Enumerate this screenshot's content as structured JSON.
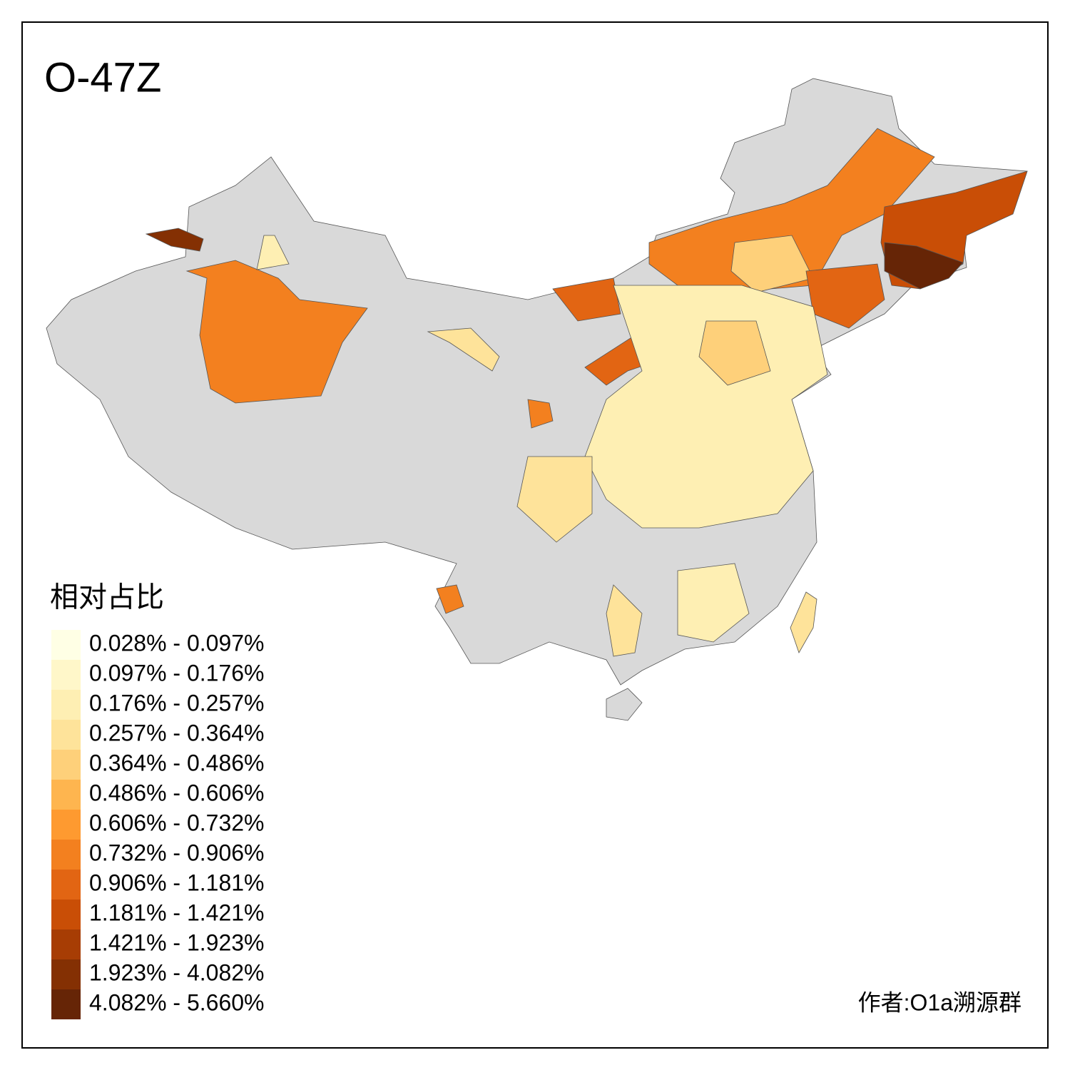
{
  "title": "O-47Z",
  "legend": {
    "title": "相对占比",
    "items": [
      {
        "label": "0.028% - 0.097%",
        "color": "#FFFFE5"
      },
      {
        "label": "0.097% - 0.176%",
        "color": "#FFF7C9"
      },
      {
        "label": "0.176% - 0.257%",
        "color": "#FEEFB3"
      },
      {
        "label": "0.257% - 0.364%",
        "color": "#FEE39A"
      },
      {
        "label": "0.364% - 0.486%",
        "color": "#FED07A"
      },
      {
        "label": "0.486% - 0.606%",
        "color": "#FEB54F"
      },
      {
        "label": "0.606% - 0.732%",
        "color": "#FE9A30"
      },
      {
        "label": "0.732% - 0.906%",
        "color": "#F3801F"
      },
      {
        "label": "0.906% - 1.181%",
        "color": "#E26513"
      },
      {
        "label": "1.181% - 1.421%",
        "color": "#C94E06"
      },
      {
        "label": "1.421% - 1.923%",
        "color": "#A73D04"
      },
      {
        "label": "1.923% - 4.082%",
        "color": "#843003"
      },
      {
        "label": "4.082% - 5.660%",
        "color": "#662506"
      }
    ]
  },
  "author": "作者:O1a溯源群"
}
